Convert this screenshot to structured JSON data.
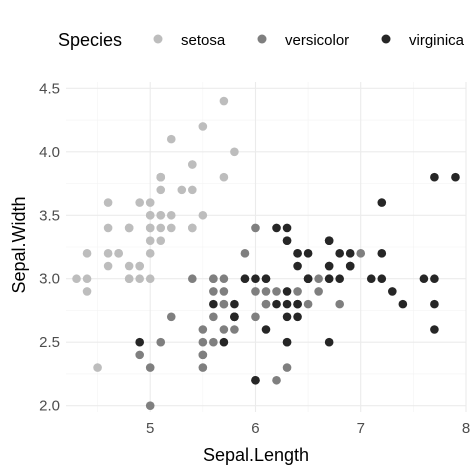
{
  "chart_data": {
    "type": "scatter",
    "xlabel": "Sepal.Length",
    "ylabel": "Sepal.Width",
    "xlim": [
      4.2,
      8.0
    ],
    "ylim": [
      1.95,
      4.55
    ],
    "x_ticks": [
      5,
      6,
      7,
      8
    ],
    "y_ticks": [
      2.0,
      2.5,
      3.0,
      3.5,
      4.0,
      4.5
    ],
    "x_tick_labels": [
      "5",
      "6",
      "7",
      "8"
    ],
    "y_tick_labels": [
      "2.0",
      "2.5",
      "3.0",
      "3.5",
      "4.0",
      "4.5"
    ],
    "grid": true,
    "legend": {
      "title": "Species",
      "position": "top"
    },
    "series": [
      {
        "name": "setosa",
        "color": "#bdbdbd",
        "points": [
          [
            5.1,
            3.5
          ],
          [
            4.9,
            3.0
          ],
          [
            4.7,
            3.2
          ],
          [
            4.6,
            3.1
          ],
          [
            5.0,
            3.6
          ],
          [
            5.4,
            3.9
          ],
          [
            4.6,
            3.4
          ],
          [
            5.0,
            3.4
          ],
          [
            4.4,
            2.9
          ],
          [
            4.9,
            3.1
          ],
          [
            5.4,
            3.7
          ],
          [
            4.8,
            3.4
          ],
          [
            4.8,
            3.0
          ],
          [
            4.3,
            3.0
          ],
          [
            5.8,
            4.0
          ],
          [
            5.7,
            4.4
          ],
          [
            5.4,
            3.9
          ],
          [
            5.1,
            3.5
          ],
          [
            5.7,
            3.8
          ],
          [
            5.1,
            3.8
          ],
          [
            5.4,
            3.4
          ],
          [
            5.1,
            3.7
          ],
          [
            4.6,
            3.6
          ],
          [
            5.1,
            3.3
          ],
          [
            4.8,
            3.4
          ],
          [
            5.0,
            3.0
          ],
          [
            5.0,
            3.4
          ],
          [
            5.2,
            3.5
          ],
          [
            5.2,
            3.4
          ],
          [
            4.7,
            3.2
          ],
          [
            4.8,
            3.1
          ],
          [
            5.4,
            3.4
          ],
          [
            5.2,
            4.1
          ],
          [
            5.5,
            4.2
          ],
          [
            4.9,
            3.1
          ],
          [
            5.0,
            3.2
          ],
          [
            5.5,
            3.5
          ],
          [
            4.9,
            3.6
          ],
          [
            4.4,
            3.0
          ],
          [
            5.1,
            3.4
          ],
          [
            5.0,
            3.5
          ],
          [
            4.5,
            2.3
          ],
          [
            4.4,
            3.2
          ],
          [
            5.0,
            3.5
          ],
          [
            5.1,
            3.8
          ],
          [
            4.8,
            3.0
          ],
          [
            5.1,
            3.8
          ],
          [
            4.6,
            3.2
          ],
          [
            5.3,
            3.7
          ],
          [
            5.0,
            3.3
          ]
        ]
      },
      {
        "name": "versicolor",
        "color": "#7f7f7f",
        "points": [
          [
            7.0,
            3.2
          ],
          [
            6.4,
            3.2
          ],
          [
            6.9,
            3.1
          ],
          [
            5.5,
            2.3
          ],
          [
            6.5,
            2.8
          ],
          [
            5.7,
            2.8
          ],
          [
            6.3,
            3.3
          ],
          [
            4.9,
            2.4
          ],
          [
            6.6,
            2.9
          ],
          [
            5.2,
            2.7
          ],
          [
            5.0,
            2.0
          ],
          [
            5.9,
            3.0
          ],
          [
            6.0,
            2.2
          ],
          [
            6.1,
            2.9
          ],
          [
            5.6,
            2.9
          ],
          [
            6.7,
            3.1
          ],
          [
            5.6,
            3.0
          ],
          [
            5.8,
            2.7
          ],
          [
            6.2,
            2.2
          ],
          [
            5.6,
            2.5
          ],
          [
            5.9,
            3.2
          ],
          [
            6.1,
            2.8
          ],
          [
            6.3,
            2.5
          ],
          [
            6.1,
            2.8
          ],
          [
            6.4,
            2.9
          ],
          [
            6.6,
            3.0
          ],
          [
            6.8,
            2.8
          ],
          [
            6.7,
            3.0
          ],
          [
            6.0,
            2.9
          ],
          [
            5.7,
            2.6
          ],
          [
            5.5,
            2.4
          ],
          [
            5.5,
            2.4
          ],
          [
            5.8,
            2.7
          ],
          [
            6.0,
            2.7
          ],
          [
            5.4,
            3.0
          ],
          [
            6.0,
            3.4
          ],
          [
            6.7,
            3.1
          ],
          [
            6.3,
            2.3
          ],
          [
            5.6,
            3.0
          ],
          [
            5.5,
            2.5
          ],
          [
            5.5,
            2.6
          ],
          [
            6.1,
            3.0
          ],
          [
            5.8,
            2.6
          ],
          [
            5.0,
            2.3
          ],
          [
            5.6,
            2.7
          ],
          [
            5.7,
            3.0
          ],
          [
            5.7,
            2.9
          ],
          [
            6.2,
            2.9
          ],
          [
            5.1,
            2.5
          ],
          [
            5.7,
            2.8
          ]
        ]
      },
      {
        "name": "virginica",
        "color": "#262626",
        "points": [
          [
            6.3,
            3.3
          ],
          [
            5.8,
            2.7
          ],
          [
            7.1,
            3.0
          ],
          [
            6.3,
            2.9
          ],
          [
            6.5,
            3.0
          ],
          [
            7.6,
            3.0
          ],
          [
            4.9,
            2.5
          ],
          [
            7.3,
            2.9
          ],
          [
            6.7,
            2.5
          ],
          [
            7.2,
            3.6
          ],
          [
            6.5,
            3.2
          ],
          [
            6.4,
            2.7
          ],
          [
            6.8,
            3.0
          ],
          [
            5.7,
            2.5
          ],
          [
            5.8,
            2.8
          ],
          [
            6.4,
            3.2
          ],
          [
            6.5,
            3.0
          ],
          [
            7.7,
            3.8
          ],
          [
            7.7,
            2.6
          ],
          [
            6.0,
            2.2
          ],
          [
            6.9,
            3.2
          ],
          [
            5.6,
            2.8
          ],
          [
            7.7,
            2.8
          ],
          [
            6.3,
            2.7
          ],
          [
            6.7,
            3.3
          ],
          [
            7.2,
            3.2
          ],
          [
            6.2,
            2.8
          ],
          [
            6.1,
            3.0
          ],
          [
            6.4,
            2.8
          ],
          [
            7.2,
            3.0
          ],
          [
            7.4,
            2.8
          ],
          [
            7.9,
            3.8
          ],
          [
            6.4,
            2.8
          ],
          [
            6.3,
            2.8
          ],
          [
            6.1,
            2.6
          ],
          [
            7.7,
            3.0
          ],
          [
            6.3,
            3.4
          ],
          [
            6.4,
            3.1
          ],
          [
            6.0,
            3.0
          ],
          [
            6.9,
            3.1
          ],
          [
            6.7,
            3.1
          ],
          [
            6.9,
            3.1
          ],
          [
            5.8,
            2.7
          ],
          [
            6.8,
            3.2
          ],
          [
            6.7,
            3.3
          ],
          [
            6.7,
            3.0
          ],
          [
            6.3,
            2.5
          ],
          [
            6.5,
            3.0
          ],
          [
            6.2,
            3.4
          ],
          [
            5.9,
            3.0
          ]
        ]
      }
    ]
  }
}
